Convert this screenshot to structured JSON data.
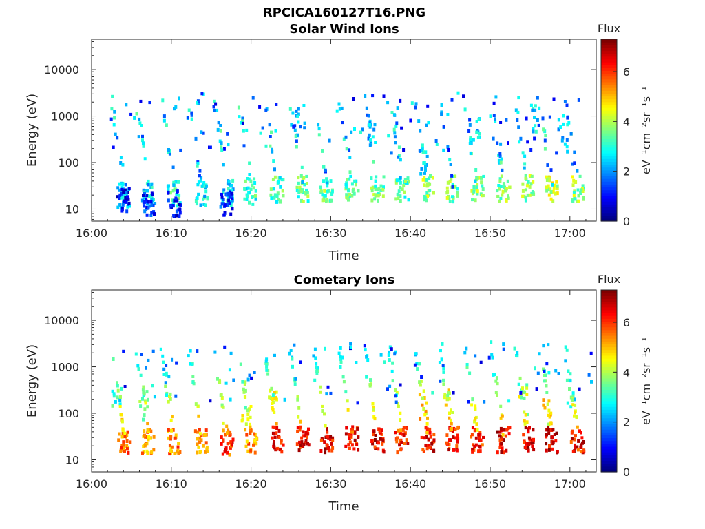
{
  "figure_title": "RPCICA160127T16.PNG",
  "colorbar": {
    "title": "Flux",
    "range": [
      0,
      7.3
    ],
    "ticks": [
      "0",
      "2",
      "4",
      "6"
    ],
    "label": "eV⁻¹cm⁻²sr⁻¹s⁻¹"
  },
  "chart_data": [
    {
      "type": "heatmap",
      "title": "Solar Wind Ions",
      "xlabel": "Time",
      "ylabel": "Energy (eV)",
      "x_ticks": [
        "16:00",
        "16:10",
        "16:20",
        "16:30",
        "16:40",
        "16:50",
        "17:00"
      ],
      "y_ticks": [
        "10",
        "100",
        "1000",
        "10000"
      ],
      "yscale": "log",
      "xlim": [
        "16:00",
        "17:03"
      ],
      "ylim": [
        5.5,
        45000
      ],
      "sweep_times_min": [
        3.9,
        7.0,
        10.2,
        13.6,
        16.8,
        19.8,
        23.1,
        26.3,
        29.3,
        32.5,
        35.7,
        38.8,
        42.0,
        45.1,
        48.2,
        51.5,
        54.5,
        57.6,
        60.8
      ],
      "clusters": [
        {
          "t": 3.9,
          "e": 20,
          "v": 2.3
        },
        {
          "t": 3.9,
          "e": 15,
          "v": 1.0
        },
        {
          "t": 7.0,
          "e": 22,
          "v": 2.5
        },
        {
          "t": 7.0,
          "e": 13,
          "v": 1.2
        },
        {
          "t": 10.2,
          "e": 22,
          "v": 3.0
        },
        {
          "t": 10.2,
          "e": 13,
          "v": 1.0
        },
        {
          "t": 13.6,
          "e": 22,
          "v": 2.7
        },
        {
          "t": 16.8,
          "e": 22,
          "v": 2.6
        },
        {
          "t": 16.8,
          "e": 13,
          "v": 1.2
        },
        {
          "t": 19.8,
          "e": 24,
          "v": 3.0
        },
        {
          "t": 23.1,
          "e": 26,
          "v": 3.2
        },
        {
          "t": 26.3,
          "e": 27,
          "v": 3.4
        },
        {
          "t": 29.3,
          "e": 27,
          "v": 3.6
        },
        {
          "t": 32.5,
          "e": 27,
          "v": 3.4
        },
        {
          "t": 35.7,
          "e": 27,
          "v": 3.5
        },
        {
          "t": 38.8,
          "e": 27,
          "v": 3.4
        },
        {
          "t": 42.0,
          "e": 28,
          "v": 3.8
        },
        {
          "t": 45.1,
          "e": 27,
          "v": 3.6
        },
        {
          "t": 48.2,
          "e": 27,
          "v": 3.7
        },
        {
          "t": 51.5,
          "e": 27,
          "v": 3.6
        },
        {
          "t": 54.5,
          "e": 28,
          "v": 3.8
        },
        {
          "t": 57.6,
          "e": 28,
          "v": 4.3
        },
        {
          "t": 60.8,
          "e": 27,
          "v": 3.8
        },
        {
          "t": 41.5,
          "e": 110,
          "v": 2.5
        },
        {
          "t": 26.0,
          "e": 600,
          "v": 2.2
        },
        {
          "t": 35.0,
          "e": 500,
          "v": 2.2
        },
        {
          "t": 48.0,
          "e": 400,
          "v": 2.4
        },
        {
          "t": 55.5,
          "e": 800,
          "v": 2.6
        },
        {
          "t": 59.0,
          "e": 500,
          "v": 2.4
        }
      ]
    },
    {
      "type": "heatmap",
      "title": "Cometary Ions",
      "xlabel": "Time",
      "ylabel": "Energy (eV)",
      "x_ticks": [
        "16:00",
        "16:10",
        "16:20",
        "16:30",
        "16:40",
        "16:50",
        "17:00"
      ],
      "y_ticks": [
        "10",
        "100",
        "1000",
        "10000"
      ],
      "yscale": "log",
      "xlim": [
        "16:00",
        "17:03"
      ],
      "ylim": [
        5.5,
        45000
      ],
      "sweep_times_min": [
        3.9,
        7.0,
        10.2,
        13.6,
        16.8,
        19.8,
        23.1,
        26.3,
        29.3,
        32.5,
        35.7,
        38.8,
        42.0,
        45.1,
        48.2,
        51.5,
        54.5,
        57.6,
        60.8
      ],
      "clusters": [
        {
          "t": 3.9,
          "e": 24,
          "v": 5.6
        },
        {
          "t": 7.0,
          "e": 24,
          "v": 5.2
        },
        {
          "t": 10.2,
          "e": 24,
          "v": 5.5
        },
        {
          "t": 13.6,
          "e": 24,
          "v": 5.4
        },
        {
          "t": 16.8,
          "e": 24,
          "v": 6.0
        },
        {
          "t": 19.8,
          "e": 26,
          "v": 5.3
        },
        {
          "t": 23.1,
          "e": 27,
          "v": 6.3
        },
        {
          "t": 26.3,
          "e": 27,
          "v": 6.4
        },
        {
          "t": 29.3,
          "e": 27,
          "v": 6.5
        },
        {
          "t": 32.5,
          "e": 27,
          "v": 6.3
        },
        {
          "t": 35.7,
          "e": 27,
          "v": 6.5
        },
        {
          "t": 38.8,
          "e": 27,
          "v": 6.2
        },
        {
          "t": 42.0,
          "e": 27,
          "v": 6.4
        },
        {
          "t": 45.1,
          "e": 27,
          "v": 6.3
        },
        {
          "t": 48.2,
          "e": 27,
          "v": 6.2
        },
        {
          "t": 51.5,
          "e": 27,
          "v": 6.6
        },
        {
          "t": 54.5,
          "e": 27,
          "v": 6.6
        },
        {
          "t": 57.6,
          "e": 27,
          "v": 6.7
        },
        {
          "t": 60.8,
          "e": 27,
          "v": 6.3
        },
        {
          "t": 3.0,
          "e": 200,
          "v": 3.0
        },
        {
          "t": 6.5,
          "e": 150,
          "v": 3.5
        },
        {
          "t": 19.3,
          "e": 120,
          "v": 4.0
        },
        {
          "t": 22.5,
          "e": 150,
          "v": 4.4
        },
        {
          "t": 41.5,
          "e": 150,
          "v": 4.8
        },
        {
          "t": 44.5,
          "e": 150,
          "v": 4.5
        },
        {
          "t": 54.0,
          "e": 200,
          "v": 4.0
        },
        {
          "t": 57.0,
          "e": 120,
          "v": 4.6
        },
        {
          "t": 60.0,
          "e": 300,
          "v": 2.8
        }
      ]
    }
  ]
}
